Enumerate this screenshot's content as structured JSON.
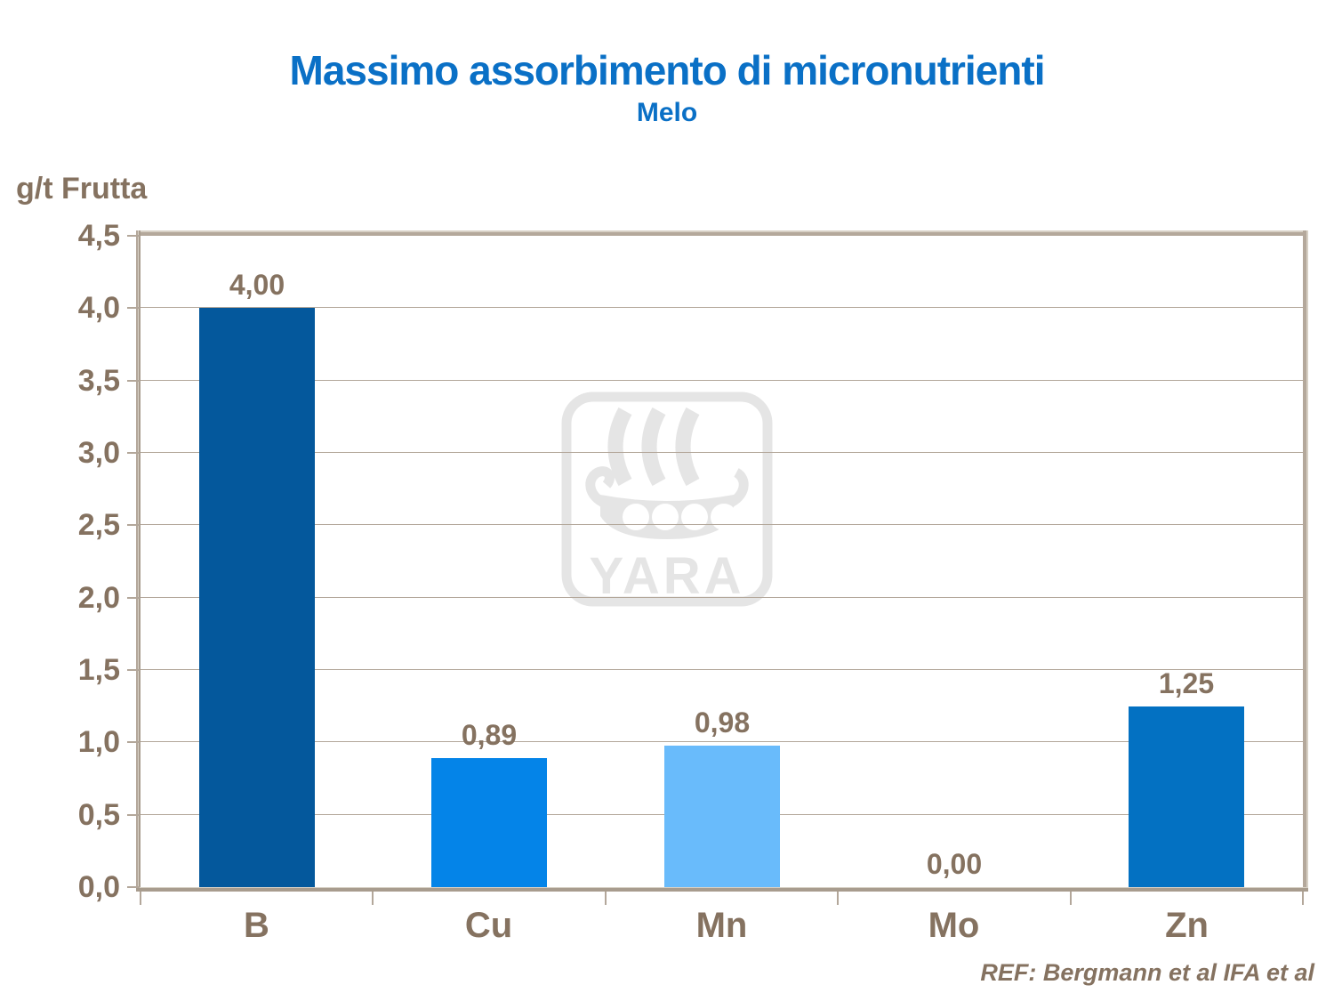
{
  "title": "Massimo assorbimento di micronutrienti",
  "subtitle": "Melo",
  "y_axis_title": "g/t Frutta",
  "reference": "REF: Bergmann et al IFA et al",
  "watermark": {
    "label": "YARA"
  },
  "colors": {
    "title_blue": "#0a70c6",
    "text_brown": "#857260",
    "gridline": "#b3a79a",
    "axis_light": "#d7d0c5",
    "axis_dark": "#a89c8e",
    "border_tan": "#b4a89b",
    "watermark_gray": "#e5e5e5"
  },
  "chart_data": {
    "type": "bar",
    "title": "Massimo assorbimento di micronutrienti",
    "subtitle": "Melo",
    "ylabel": "g/t Frutta",
    "xlabel": "",
    "categories": [
      "B",
      "Cu",
      "Mn",
      "Mo",
      "Zn"
    ],
    "values": [
      4.0,
      0.89,
      0.98,
      0.0,
      1.25
    ],
    "value_labels": [
      "4,00",
      "0,89",
      "0,98",
      "0,00",
      "1,25"
    ],
    "bar_colors": [
      "#04589c",
      "#0484e8",
      "#69bbfb",
      "#0484e8",
      "#0371c2"
    ],
    "ylim": [
      0,
      4.5
    ],
    "ytick_step": 0.5,
    "ytick_labels": [
      "0,0",
      "0,5",
      "1,0",
      "1,5",
      "2,0",
      "2,5",
      "3,0",
      "3,5",
      "4,0",
      "4,5"
    ],
    "grid": true,
    "legend": false
  }
}
